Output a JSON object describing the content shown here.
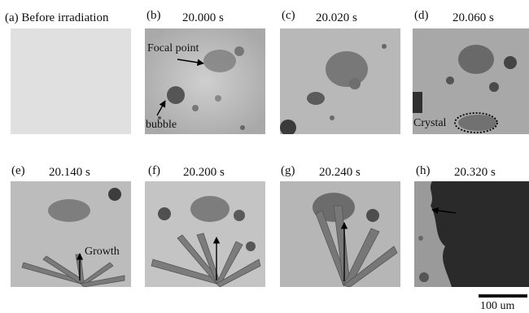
{
  "panels": [
    {
      "letter": "(a)",
      "caption": "Before irradiation",
      "time": ""
    },
    {
      "letter": "(b)",
      "caption": "",
      "time": "20.000 s"
    },
    {
      "letter": "(c)",
      "caption": "",
      "time": "20.020 s"
    },
    {
      "letter": "(d)",
      "caption": "",
      "time": "20.060 s"
    },
    {
      "letter": "(e)",
      "caption": "",
      "time": "20.140 s"
    },
    {
      "letter": "(f)",
      "caption": "",
      "time": "20.200 s"
    },
    {
      "letter": "(g)",
      "caption": "",
      "time": "20.240 s"
    },
    {
      "letter": "(h)",
      "caption": "",
      "time": "20.320 s"
    }
  ],
  "annotations": {
    "focal_point": "Focal point",
    "bubble": "bubble",
    "crystal": "Crystal",
    "growth": "Growth"
  },
  "scale_bar": "100 um"
}
